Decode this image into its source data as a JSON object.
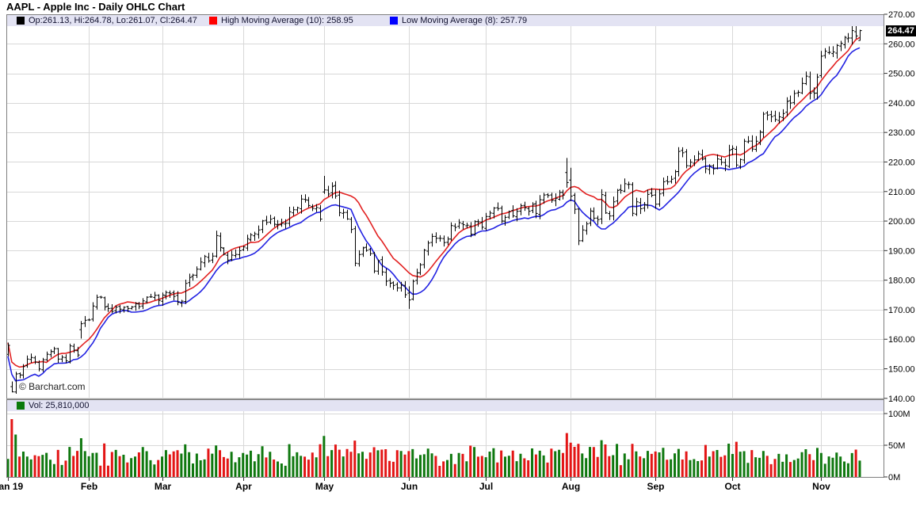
{
  "title": "AAPL - Apple Inc - Daily OHLC Chart",
  "copyright": "© Barchart.com",
  "last_price_box": "264.47",
  "legend": {
    "ohlc": {
      "label": "Op:261.13, Hi:264.78, Lo:261.07, Cl:264.47",
      "swatch": "#000000"
    },
    "high_ma": {
      "label": "High Moving Average (10): 258.95",
      "swatch": "#ff0000"
    },
    "low_ma": {
      "label": "Low Moving Average (8): 257.79",
      "swatch": "#0000ff"
    }
  },
  "volume_legend": {
    "label": "Vol: 25,810,000",
    "swatch": "#0b7a0b"
  },
  "axes": {
    "price_ticks": [
      {
        "v": 270,
        "label": "270.00"
      },
      {
        "v": 260,
        "label": "260.00"
      },
      {
        "v": 250,
        "label": "250.00"
      },
      {
        "v": 240,
        "label": "240.00"
      },
      {
        "v": 230,
        "label": "230.00"
      },
      {
        "v": 220,
        "label": "220.00"
      },
      {
        "v": 210,
        "label": "210.00"
      },
      {
        "v": 200,
        "label": "200.00"
      },
      {
        "v": 190,
        "label": "190.00"
      },
      {
        "v": 180,
        "label": "180.00"
      },
      {
        "v": 170,
        "label": "170.00"
      },
      {
        "v": 160,
        "label": "160.00"
      },
      {
        "v": 150,
        "label": "150.00"
      },
      {
        "v": 140,
        "label": "140.00"
      }
    ],
    "volume_ticks": [
      {
        "v": 100,
        "label": "100M"
      },
      {
        "v": 50,
        "label": "50M"
      },
      {
        "v": 0,
        "label": "0M"
      }
    ],
    "months": [
      {
        "label": "Jan 19",
        "start": 0
      },
      {
        "label": "Feb",
        "start": 21
      },
      {
        "label": "Mar",
        "start": 40
      },
      {
        "label": "Apr",
        "start": 61
      },
      {
        "label": "May",
        "start": 82
      },
      {
        "label": "Jun",
        "start": 104
      },
      {
        "label": "Jul",
        "start": 124
      },
      {
        "label": "Aug",
        "start": 146
      },
      {
        "label": "Sep",
        "start": 168
      },
      {
        "label": "Oct",
        "start": 188
      },
      {
        "label": "Nov",
        "start": 211
      }
    ]
  },
  "colors": {
    "bar": "#000000",
    "high_ma_line": "#e22222",
    "low_ma_line": "#2222e2",
    "volume_up": "#0f780f",
    "volume_down": "#e31515",
    "grid": "#d8d8d8",
    "border": "#7f7f7f",
    "legend_bg": "#e3e3f3",
    "axis_text": "#000000"
  },
  "chart_data": {
    "type": "ohlc",
    "symbol": "AAPL",
    "timeframe": "Daily, Jan 2019 - Nov 2019",
    "price_range": [
      140,
      270
    ],
    "volume_range_millions": [
      0,
      110
    ],
    "high_ma_period": 10,
    "low_ma_period": 8,
    "last_bar": {
      "open": 261.13,
      "high": 264.78,
      "low": 261.07,
      "close": 264.47,
      "volume": 25810000
    },
    "closes": [
      157.92,
      142.19,
      148.26,
      147.93,
      150.75,
      153.31,
      153.8,
      152.29,
      149.93,
      153.07,
      154.94,
      155.86,
      156.82,
      153.3,
      153.92,
      152.7,
      157.76,
      156.3,
      154.68,
      165.25,
      166.44,
      166.52,
      171.25,
      174.18,
      174.24,
      170.94,
      170.41,
      169.43,
      170.89,
      170.18,
      170.8,
      170.42,
      170.93,
      172.03,
      171.06,
      172.97,
      174.23,
      174.33,
      174.87,
      173.15,
      174.97,
      175.85,
      175.53,
      174.52,
      172.5,
      172.91,
      178.9,
      180.91,
      181.71,
      183.73,
      186.12,
      188.02,
      186.53,
      188.16,
      195.09,
      191.05,
      188.74,
      186.79,
      188.47,
      188.72,
      189.95,
      191.24,
      194.02,
      195.35,
      195.69,
      197.0,
      200.1,
      199.5,
      200.62,
      198.95,
      198.87,
      199.23,
      199.25,
      203.13,
      203.86,
      204.53,
      207.48,
      207.16,
      205.28,
      204.3,
      204.61,
      200.67,
      210.52,
      209.15,
      211.75,
      208.48,
      202.86,
      202.9,
      200.72,
      197.18,
      185.72,
      188.66,
      190.92,
      190.08,
      189.0,
      183.09,
      186.6,
      182.78,
      179.66,
      178.97,
      178.23,
      177.38,
      178.3,
      175.07,
      173.3,
      179.64,
      182.54,
      185.22,
      190.15,
      192.58,
      194.81,
      194.19,
      194.15,
      192.74,
      193.89,
      198.45,
      197.87,
      199.46,
      198.78,
      198.58,
      195.57,
      199.8,
      199.74,
      197.92,
      201.55,
      202.73,
      204.41,
      204.23,
      200.02,
      201.24,
      203.23,
      201.75,
      203.3,
      205.21,
      204.5,
      203.35,
      205.66,
      202.59,
      207.22,
      208.84,
      208.67,
      207.02,
      207.74,
      209.68,
      208.78,
      213.04,
      208.43,
      204.02,
      193.34,
      197.0,
      199.04,
      203.43,
      200.99,
      200.48,
      208.97,
      202.75,
      201.74,
      206.5,
      210.35,
      210.36,
      212.64,
      212.46,
      202.64,
      206.49,
      204.16,
      205.53,
      209.01,
      208.74,
      205.7,
      209.19,
      213.28,
      213.26,
      214.17,
      216.7,
      223.59,
      223.09,
      218.75,
      219.9,
      220.7,
      222.77,
      220.96,
      217.73,
      218.72,
      217.68,
      221.03,
      219.89,
      218.82,
      223.97,
      224.59,
      218.96,
      220.82,
      227.01,
      227.06,
      224.4,
      227.03,
      230.09,
      236.21,
      235.87,
      235.32,
      234.37,
      235.28,
      236.41,
      240.51,
      239.96,
      243.18,
      243.58,
      246.58,
      249.05,
      243.29,
      243.26,
      248.76,
      255.82,
      257.5,
      257.13,
      257.24,
      259.43,
      260.14,
      262.2,
      261.96,
      264.47,
      262.64,
      264.47
    ],
    "bar_overrides": {
      "0": [
        154.89,
        158.85,
        154.23,
        157.92
      ],
      "1": [
        143.98,
        145.72,
        142.0,
        142.19
      ],
      "19": [
        163.25,
        166.15,
        160.23,
        165.25
      ],
      "82": [
        209.88,
        215.31,
        209.23,
        210.52
      ],
      "104": [
        175.6,
        177.92,
        170.27,
        173.3
      ],
      "145": [
        216.42,
        221.37,
        211.3,
        213.04
      ],
      "146": [
        213.9,
        218.03,
        206.74,
        208.43
      ],
      "221": [
        261.13,
        264.78,
        261.07,
        264.47
      ]
    },
    "volume_overrides_millions": {
      "1": 91.3,
      "19": 61.1,
      "20": 40.7,
      "82": 64.8,
      "90": 57.4,
      "104": 40.8,
      "145": 69.3,
      "146": 54.0,
      "148": 52.3,
      "152": 47.2,
      "168": 40.1,
      "174": 44.3,
      "188": 36.2,
      "196": 41.0,
      "211": 37.8,
      "221": 25.81
    }
  }
}
